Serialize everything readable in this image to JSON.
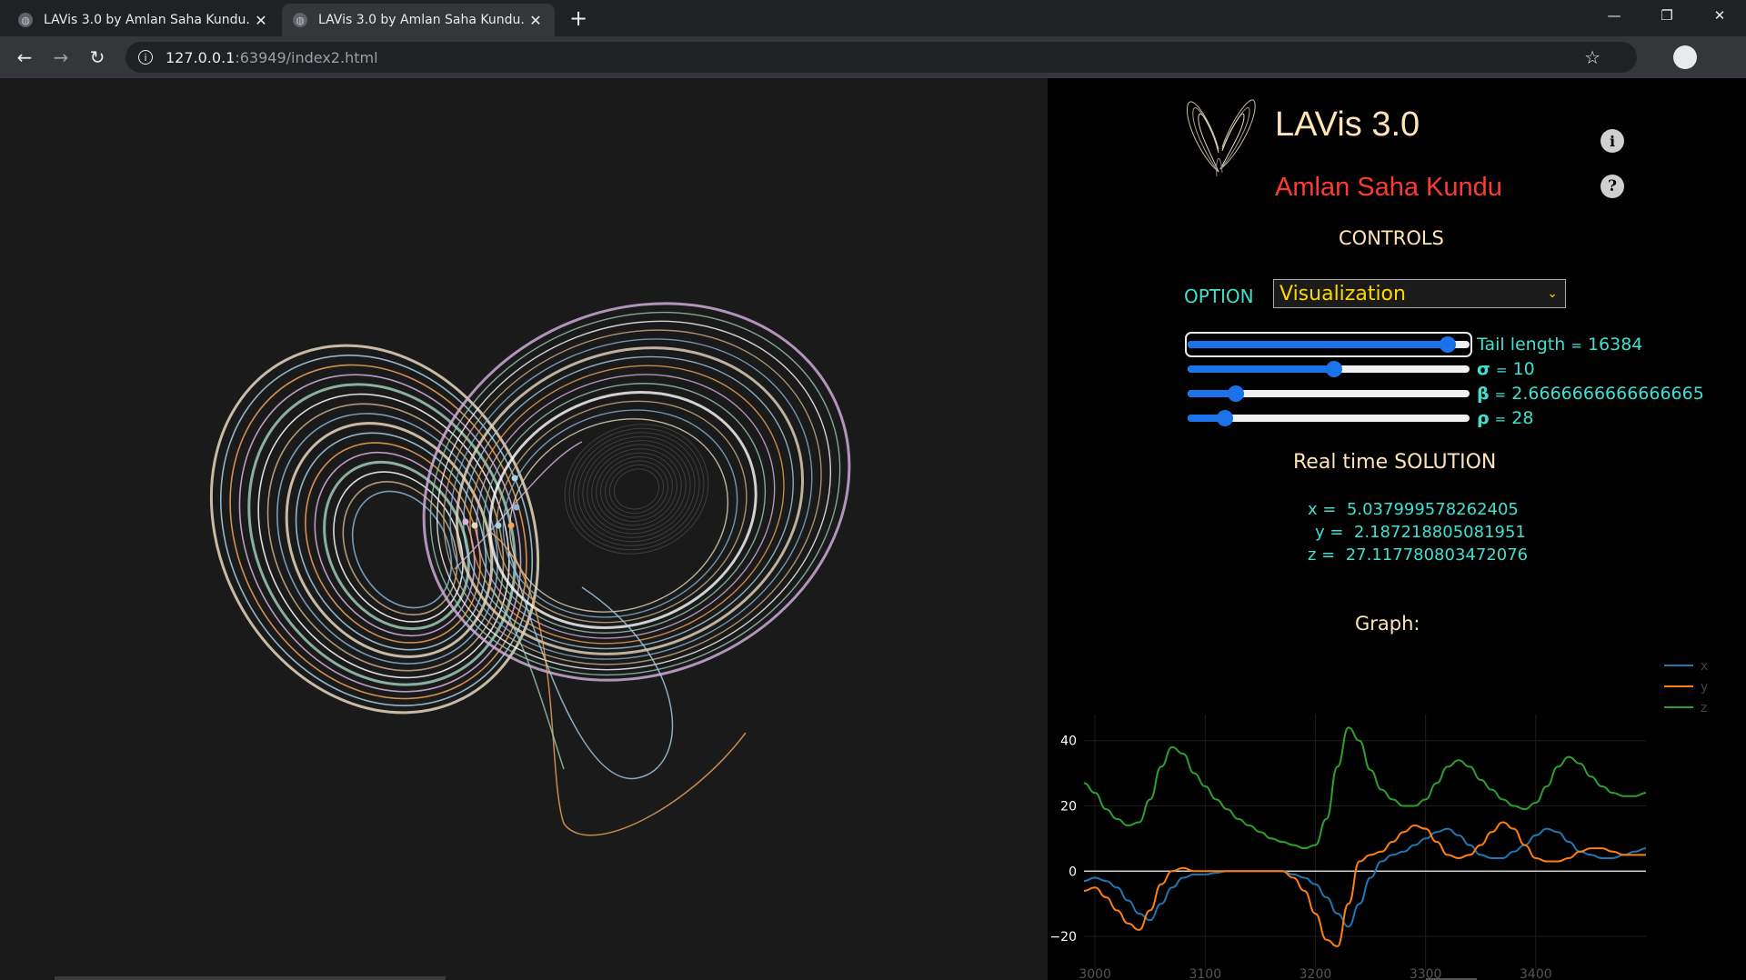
{
  "browser": {
    "tabs": [
      {
        "title": "LAVis 3.0 by Amlan Saha Kundu.",
        "active": false
      },
      {
        "title": "LAVis 3.0 by Amlan Saha Kundu.",
        "active": true
      }
    ],
    "url_host": "127.0.0.1",
    "url_rest": ":63949/index2.html"
  },
  "app": {
    "title": "LAVis 3.0",
    "author": "Amlan Saha Kundu",
    "controls_title": "CONTROLS",
    "option_label": "OPTION",
    "option_value": "Visualization",
    "sliders": [
      {
        "symbol": "Tail length",
        "value": "16384",
        "fraction": 0.95
      },
      {
        "symbol": "σ",
        "value": "10",
        "fraction": 0.52
      },
      {
        "symbol": "β",
        "value": "2.6666666666666665",
        "fraction": 0.15
      },
      {
        "symbol": "ρ",
        "value": "28",
        "fraction": 0.11
      }
    ],
    "realtime_title": "Real time SOLUTION",
    "solution": {
      "x_label": "x =",
      "x": "5.037999578262405",
      "y_label": "y =",
      "y": "2.187218805081951",
      "z_label": "z =",
      "z": "27.117780803472076"
    },
    "graph_title": "Graph:"
  },
  "colors": {
    "accent": "#40e0d0",
    "title": "#ffe4b5",
    "author": "#ff3b30",
    "select_text": "#ffd700",
    "slider": "#1a73e8",
    "x_series": "#1f77b4",
    "y_series": "#ff7f0e",
    "z_series": "#2ca02c"
  },
  "chart_data": {
    "type": "line",
    "title": "",
    "xlabel": "",
    "ylabel": "",
    "xlim": [
      2990,
      3500
    ],
    "ylim": [
      -30,
      48
    ],
    "xticks": [
      3000,
      3100,
      3200,
      3300,
      3400
    ],
    "yticks": [
      40,
      20,
      0,
      -20
    ],
    "legend_position": "top-right",
    "grid": true,
    "x": [
      2990,
      3000,
      3010,
      3020,
      3030,
      3040,
      3050,
      3060,
      3070,
      3080,
      3090,
      3100,
      3110,
      3120,
      3130,
      3140,
      3150,
      3160,
      3170,
      3180,
      3190,
      3200,
      3210,
      3220,
      3230,
      3240,
      3250,
      3260,
      3270,
      3280,
      3290,
      3300,
      3310,
      3320,
      3330,
      3340,
      3350,
      3360,
      3370,
      3380,
      3390,
      3400,
      3410,
      3420,
      3430,
      3440,
      3450,
      3460,
      3470,
      3480,
      3490,
      3500
    ],
    "series": [
      {
        "name": "x",
        "values": [
          -3,
          -2,
          -3,
          -5,
          -9,
          -13,
          -15,
          -10,
          -5,
          -2,
          -1,
          -1,
          -0.5,
          0,
          0,
          0,
          0,
          0,
          0,
          -1,
          -2,
          -4,
          -8,
          -13,
          -17,
          -10,
          -2,
          3,
          5,
          6,
          8,
          10,
          12,
          13,
          11,
          8,
          5,
          4,
          4,
          6,
          8,
          11,
          13,
          12,
          9,
          6,
          5,
          4,
          4,
          5,
          6,
          7
        ]
      },
      {
        "name": "y",
        "values": [
          -6,
          -5,
          -8,
          -12,
          -16,
          -18,
          -12,
          -4,
          0,
          1,
          0,
          0,
          0,
          0,
          0,
          0,
          0,
          0,
          0,
          -2,
          -6,
          -13,
          -21,
          -23,
          -10,
          3,
          5,
          6,
          9,
          12,
          14,
          13,
          9,
          5,
          4,
          5,
          8,
          12,
          15,
          13,
          8,
          4,
          3,
          3,
          4,
          6,
          7,
          7,
          6,
          5,
          5,
          5
        ]
      },
      {
        "name": "z",
        "values": [
          27,
          24,
          19,
          16,
          14,
          15,
          22,
          32,
          38,
          36,
          30,
          26,
          22,
          19,
          16,
          14,
          12,
          10,
          9,
          8,
          7,
          8,
          16,
          32,
          44,
          40,
          31,
          25,
          22,
          20,
          20,
          22,
          27,
          32,
          34,
          32,
          28,
          25,
          22,
          20,
          19,
          21,
          26,
          32,
          35,
          33,
          29,
          26,
          24,
          23,
          23,
          24
        ]
      }
    ]
  }
}
